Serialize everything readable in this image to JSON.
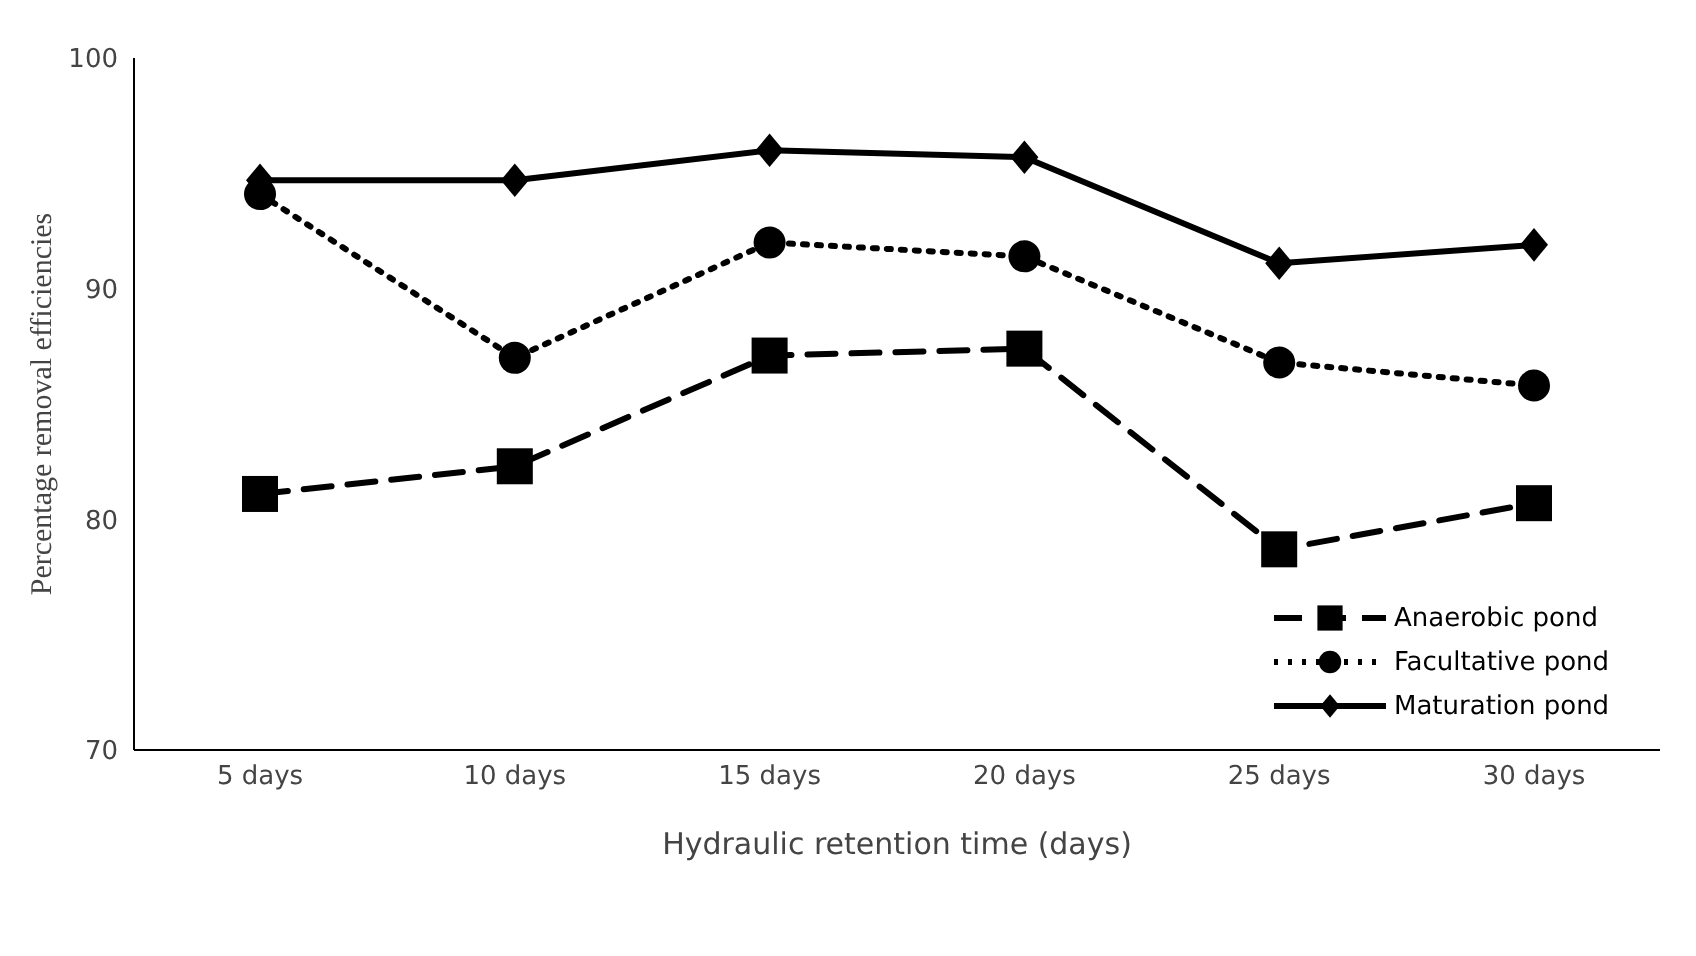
{
  "chart_data": {
    "type": "line",
    "xlabel": "Hydraulic retention time (days)",
    "ylabel": "Percentage removal efficiencies",
    "categories": [
      "5 days",
      "10 days",
      "15 days",
      "20 days",
      "25 days",
      "30 days"
    ],
    "series": [
      {
        "name": "Anaerobic pond",
        "color": "#000000",
        "marker": "square",
        "line_style": "dashed",
        "values": [
          81.1,
          82.3,
          87.1,
          87.4,
          78.7,
          80.7
        ]
      },
      {
        "name": "Facultative pond",
        "color": "#000000",
        "marker": "circle",
        "line_style": "dotted",
        "values": [
          94.1,
          87.0,
          92.0,
          91.4,
          86.8,
          85.8
        ]
      },
      {
        "name": "Maturation pond",
        "color": "#000000",
        "marker": "diamond",
        "line_style": "solid",
        "values": [
          94.7,
          94.7,
          96.0,
          95.7,
          91.1,
          91.9
        ]
      }
    ],
    "ylim": [
      70,
      100
    ],
    "yticks": [
      70,
      80,
      90,
      100
    ],
    "grid": false,
    "legend": "bottom right"
  }
}
